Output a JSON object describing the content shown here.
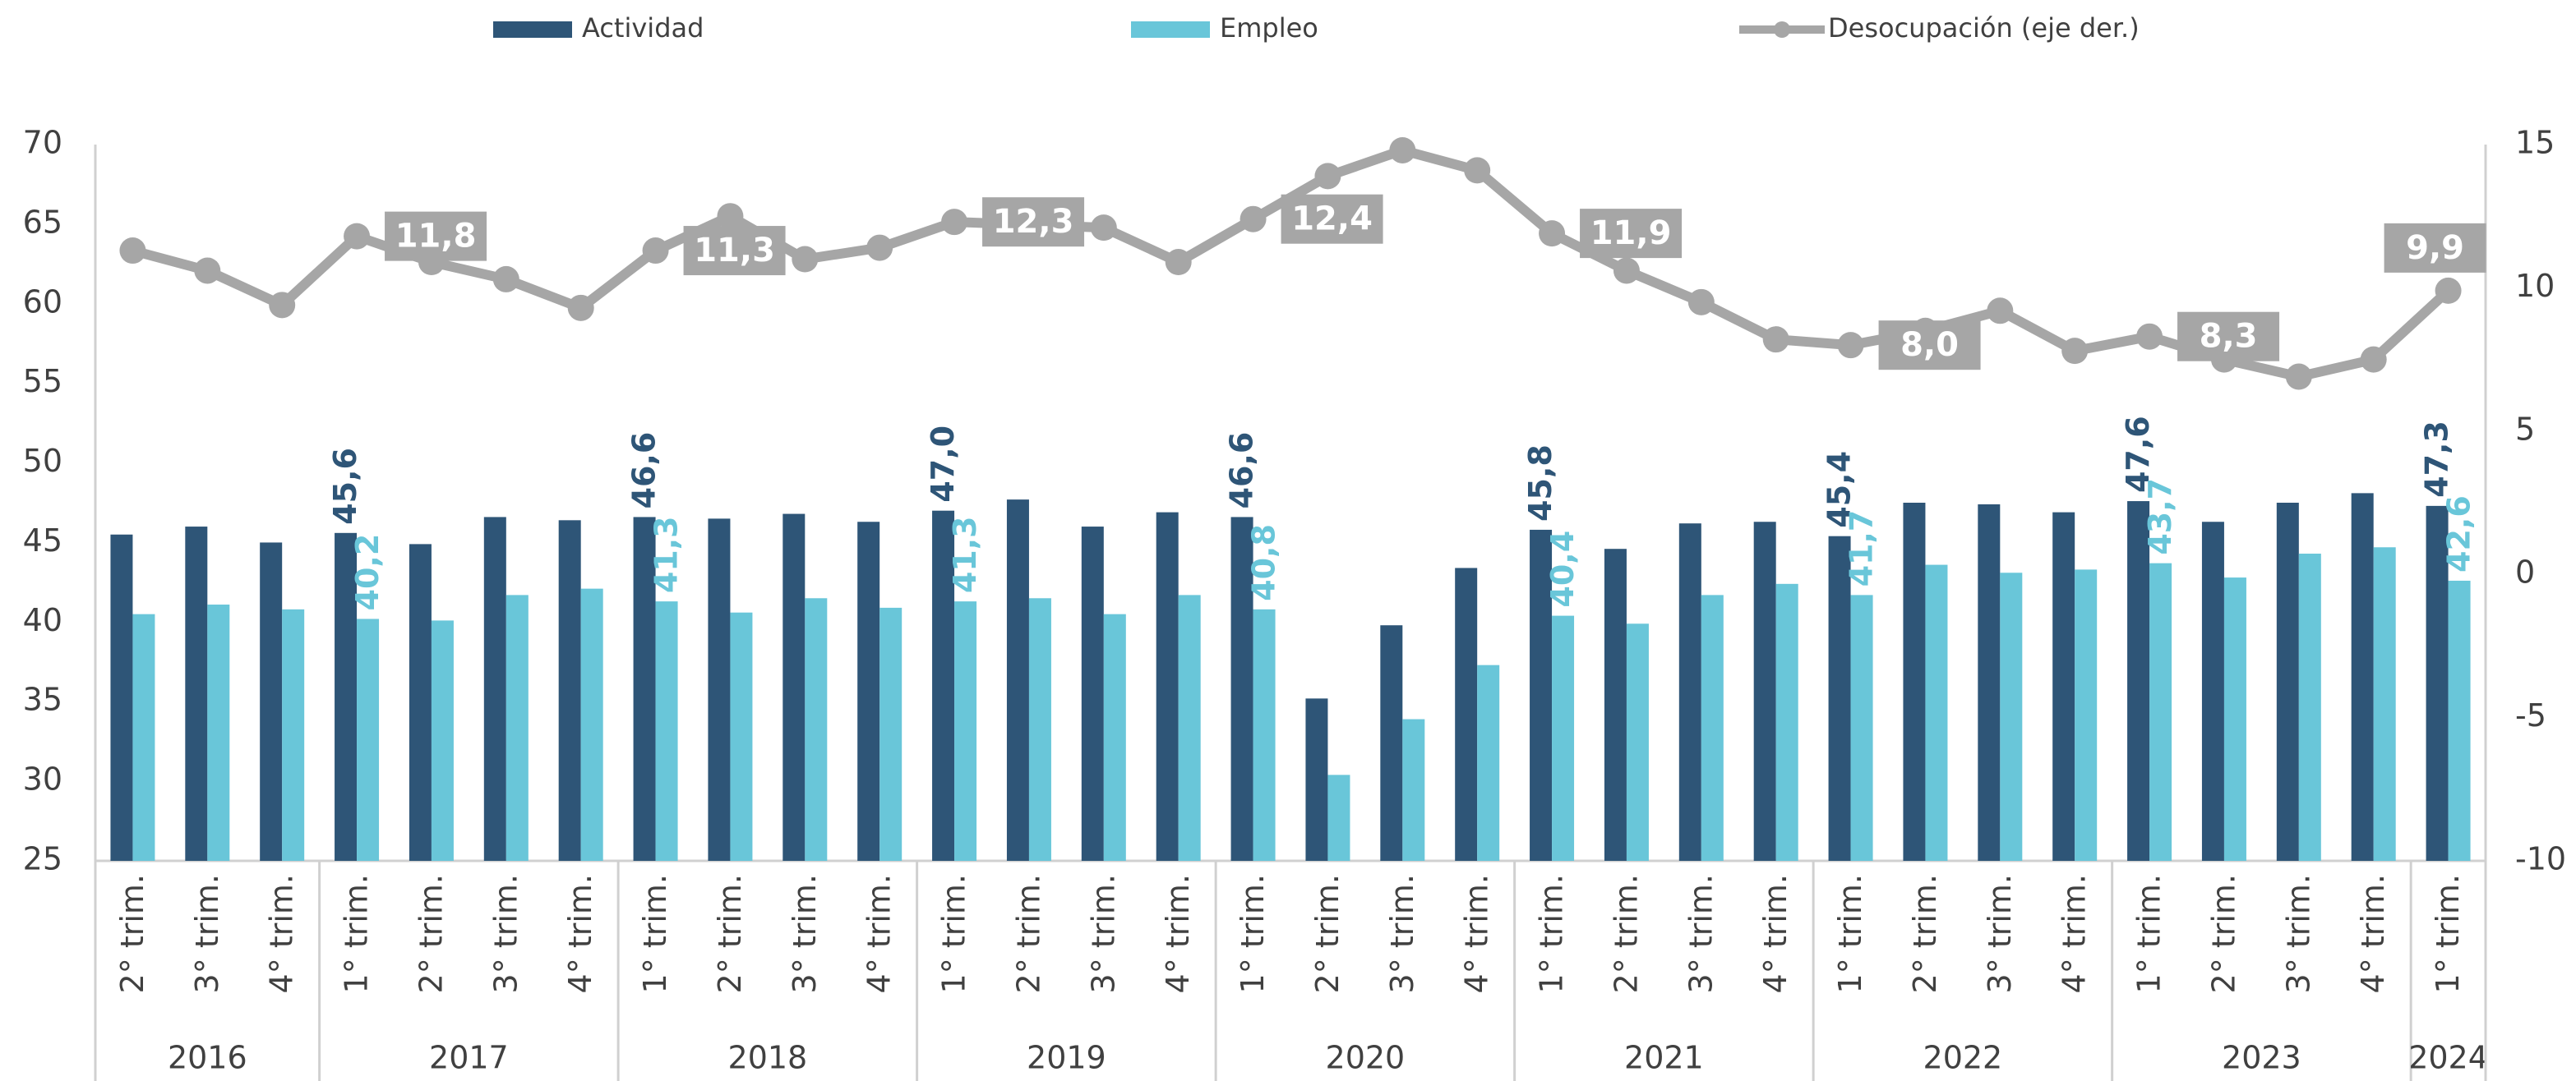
{
  "chart_data": {
    "type": "bar_line",
    "categories": [
      "2° trim.",
      "3° trim.",
      "4° trim.",
      "1° trim.",
      "2° trim.",
      "3° trim.",
      "4° trim.",
      "1° trim.",
      "2° trim.",
      "3° trim.",
      "4° trim.",
      "1° trim.",
      "2° trim.",
      "3° trim.",
      "4° trim.",
      "1° trim.",
      "2° trim.",
      "3° trim.",
      "4° trim.",
      "1° trim.",
      "2° trim.",
      "3° trim.",
      "4° trim.",
      "1° trim.",
      "2° trim.",
      "3° trim.",
      "4° trim.",
      "1° trim.",
      "2° trim.",
      "3° trim.",
      "4° trim.",
      "1° trim."
    ],
    "category_years": [
      "2016",
      "2016",
      "2016",
      "2017",
      "2017",
      "2017",
      "2017",
      "2018",
      "2018",
      "2018",
      "2018",
      "2019",
      "2019",
      "2019",
      "2019",
      "2020",
      "2020",
      "2020",
      "2020",
      "2021",
      "2021",
      "2021",
      "2021",
      "2022",
      "2022",
      "2022",
      "2022",
      "2023",
      "2023",
      "2023",
      "2023",
      "2024"
    ],
    "series": [
      {
        "name": "Actividad",
        "color": "#2e5577",
        "kind": "bar",
        "values": [
          45.5,
          46.0,
          45.0,
          45.6,
          44.9,
          46.6,
          46.4,
          46.6,
          46.5,
          46.8,
          46.3,
          47.0,
          47.7,
          46.0,
          46.9,
          46.6,
          35.2,
          39.8,
          43.4,
          45.8,
          44.6,
          46.2,
          46.3,
          45.4,
          47.5,
          47.4,
          46.9,
          47.6,
          46.3,
          47.5,
          48.1,
          47.3
        ],
        "value_labels": [
          null,
          null,
          null,
          "45,6",
          null,
          null,
          null,
          "46,6",
          null,
          null,
          null,
          "47,0",
          null,
          null,
          null,
          "46,6",
          null,
          null,
          null,
          "45,8",
          null,
          null,
          null,
          "45,4",
          null,
          null,
          null,
          "47,6",
          null,
          null,
          null,
          "47,3"
        ]
      },
      {
        "name": "Empleo",
        "color": "#69c6d9",
        "kind": "bar",
        "values": [
          40.5,
          41.1,
          40.8,
          40.2,
          40.1,
          41.7,
          42.1,
          41.3,
          40.6,
          41.5,
          40.9,
          41.3,
          41.5,
          40.5,
          41.7,
          40.8,
          30.4,
          33.9,
          37.3,
          40.4,
          39.9,
          41.7,
          42.4,
          41.7,
          43.6,
          43.1,
          43.3,
          43.7,
          42.8,
          44.3,
          44.7,
          42.6
        ],
        "value_labels": [
          null,
          null,
          null,
          "40,2",
          null,
          null,
          null,
          "41,3",
          null,
          null,
          null,
          "41,3",
          null,
          null,
          null,
          "40,8",
          null,
          null,
          null,
          "40,4",
          null,
          null,
          null,
          "41,7",
          null,
          null,
          null,
          "43,7",
          null,
          null,
          null,
          "42,6"
        ]
      },
      {
        "name": "Desocupación (eje der.)",
        "color": "#a6a6a6",
        "kind": "line",
        "axis": "y2",
        "values": [
          11.3,
          10.6,
          9.4,
          11.8,
          10.9,
          10.3,
          9.3,
          11.3,
          12.5,
          11.0,
          11.4,
          12.3,
          12.2,
          12.1,
          10.9,
          12.4,
          13.9,
          14.8,
          14.1,
          11.9,
          10.6,
          9.5,
          8.2,
          8.0,
          8.5,
          9.2,
          7.8,
          8.3,
          7.5,
          6.9,
          7.5,
          9.9
        ],
        "value_labels": [
          null,
          null,
          null,
          "11,8",
          null,
          null,
          null,
          "11,3",
          null,
          null,
          null,
          "12,3",
          null,
          null,
          null,
          "12,4",
          null,
          null,
          null,
          "11,9",
          null,
          null,
          null,
          "8,0",
          null,
          null,
          null,
          "8,3",
          null,
          null,
          null,
          "9,9"
        ]
      }
    ],
    "ylim": [
      25,
      70
    ],
    "yticks": [
      25,
      30,
      35,
      40,
      45,
      50,
      55,
      60,
      65,
      70
    ],
    "y2lim": [
      -10,
      15
    ],
    "y2ticks": [
      -10,
      -5,
      0,
      5,
      10,
      15
    ],
    "legend": "top",
    "grid": false
  }
}
